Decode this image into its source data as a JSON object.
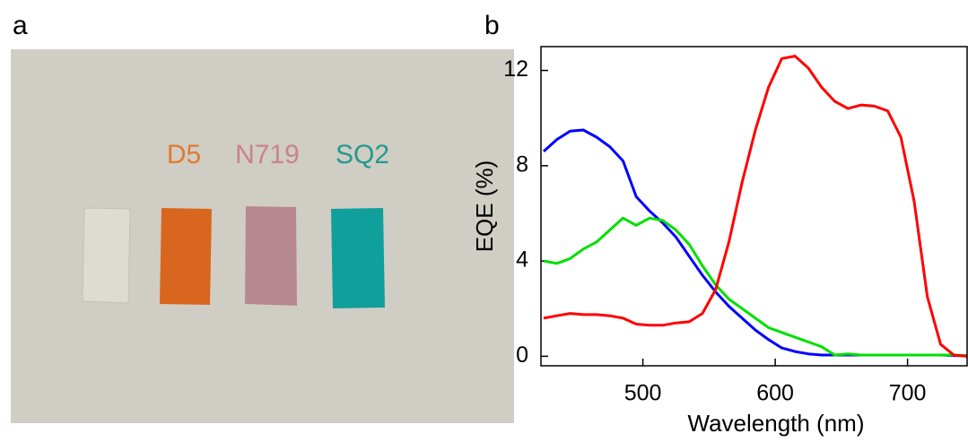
{
  "panel_a": {
    "label": "a",
    "samples": [
      "D5",
      "N719",
      "SQ2"
    ]
  },
  "chart_data": {
    "type": "line",
    "label": "b",
    "xlabel": "Wavelength (nm)",
    "ylabel": "EQE (%)",
    "xlim": [
      423,
      745
    ],
    "ylim": [
      -0.4,
      13
    ],
    "xticks": [
      500,
      600,
      700
    ],
    "yticks": [
      0,
      4,
      8,
      12
    ],
    "x": [
      425,
      435,
      445,
      455,
      465,
      475,
      485,
      495,
      505,
      515,
      525,
      535,
      545,
      555,
      565,
      575,
      585,
      595,
      605,
      615,
      625,
      635,
      645,
      655,
      665,
      675,
      685,
      695,
      705,
      715,
      725,
      735,
      745
    ],
    "series": [
      {
        "color": "#0000ff",
        "values": [
          8.6,
          9.1,
          9.45,
          9.5,
          9.2,
          8.8,
          8.2,
          6.7,
          6.1,
          5.6,
          5.0,
          4.2,
          3.4,
          2.7,
          2.1,
          1.6,
          1.1,
          0.7,
          0.35,
          0.2,
          0.1,
          0.05,
          0.05,
          0.05,
          0.05,
          0.05,
          0.05,
          0.05,
          0.05,
          0.05,
          0.05,
          0.03,
          0.02
        ]
      },
      {
        "color": "#00e000",
        "values": [
          4.0,
          3.9,
          4.1,
          4.5,
          4.8,
          5.3,
          5.8,
          5.5,
          5.8,
          5.7,
          5.3,
          4.7,
          3.8,
          3.0,
          2.4,
          2.0,
          1.6,
          1.2,
          1.0,
          0.8,
          0.6,
          0.4,
          0.05,
          0.1,
          0.05,
          0.05,
          0.05,
          0.05,
          0.05,
          0.05,
          0.05,
          0.05,
          0.02
        ]
      },
      {
        "color": "#ff0000",
        "values": [
          1.6,
          1.7,
          1.8,
          1.75,
          1.75,
          1.7,
          1.6,
          1.35,
          1.3,
          1.3,
          1.4,
          1.45,
          1.8,
          2.8,
          4.8,
          7.3,
          9.5,
          11.3,
          12.5,
          12.6,
          12.1,
          11.3,
          10.7,
          10.4,
          10.55,
          10.5,
          10.3,
          9.2,
          6.5,
          2.5,
          0.5,
          0.05,
          0
        ]
      }
    ]
  }
}
